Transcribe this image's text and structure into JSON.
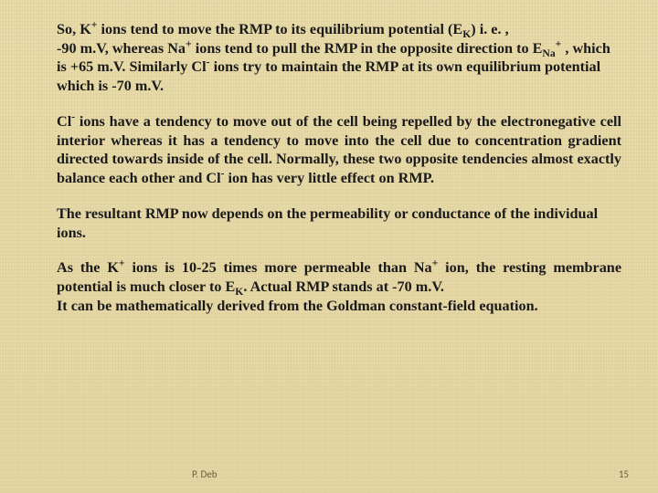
{
  "background_color": "#e6d9a8",
  "text_color": "#1a1a1a",
  "font_family": "Times New Roman",
  "font_size_pt": 12,
  "font_weight": "bold",
  "paragraphs": {
    "p1": "So, K⁺ ions tend to move the RMP to its equilibrium potential (E_K) i. e. , -90 m.V, whereas Na⁺ ions tend to pull the RMP in the opposite direction to E_Na⁺ , which is +65 m.V. Similarly Cl⁻ ions try to maintain the RMP at its own equilibrium potential which is -70 m.V.",
    "p2": "Cl⁻ ions have a tendency to move out of the cell being repelled by the electronegative cell interior whereas it has a tendency to move into the cell due to concentration gradient directed towards inside of the cell. Normally, these two opposite tendencies almost exactly balance each other and Cl⁻ ion has very little effect on RMP.",
    "p3": "The resultant RMP now depends on the permeability or conductance of the individual ions.",
    "p4a": "As the K⁺ ions is 10-25 times more permeable than Na⁺ ion, the resting membrane potential is much closer to E_K. Actual RMP stands at -70 m.V.",
    "p4b": "It can be mathematically derived from the Goldman constant-field equation."
  },
  "footer": {
    "author": "P. Deb",
    "page": "15",
    "color": "#6b5f3a",
    "font_size_pt": 8
  }
}
